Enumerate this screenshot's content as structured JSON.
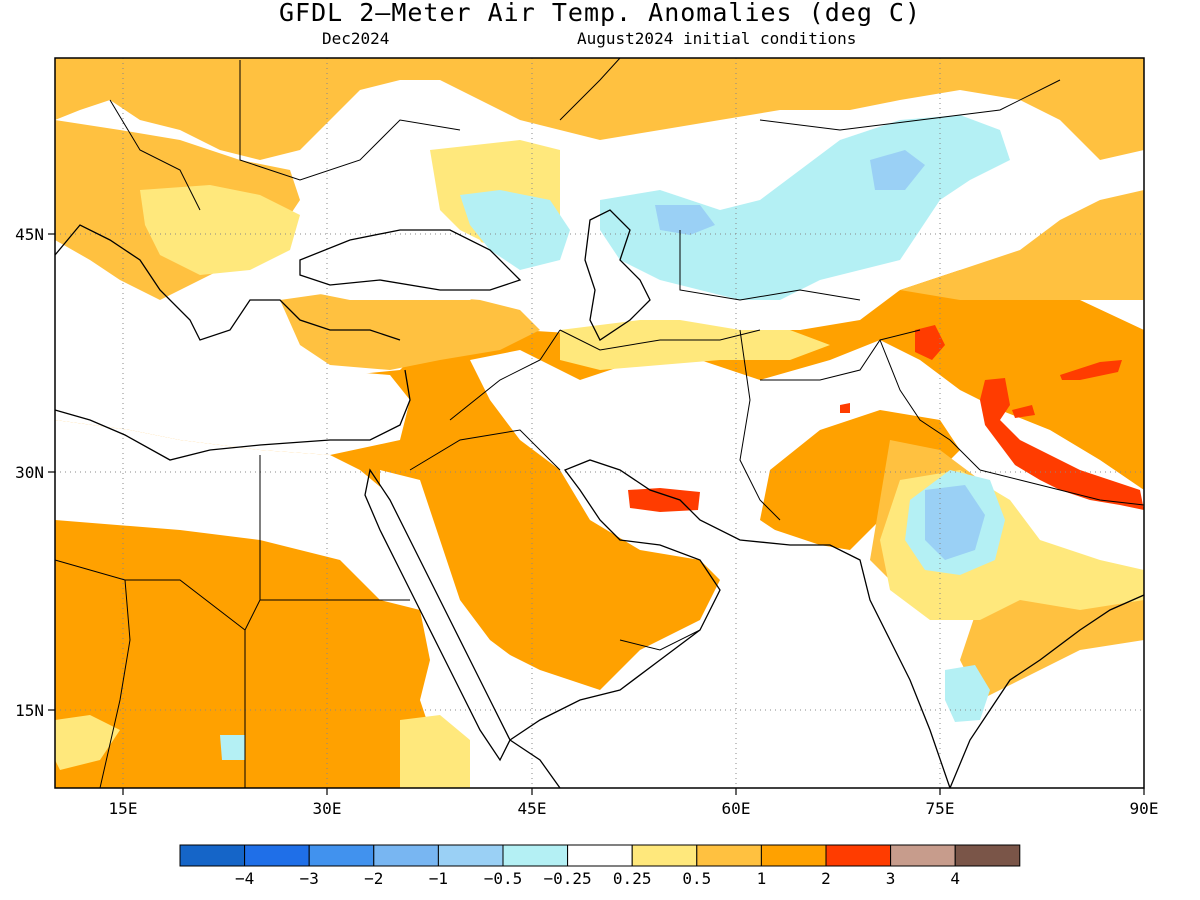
{
  "title": "GFDL 2—Meter Air Temp. Anomalies (deg C)",
  "subtitle_left": "Dec2024",
  "subtitle_right": "August2024 initial conditions",
  "map": {
    "lon_range": [
      10,
      90
    ],
    "lat_range": [
      10,
      57
    ],
    "lon_ticks": [
      "15E",
      "30E",
      "45E",
      "60E",
      "75E",
      "90E"
    ],
    "lat_ticks": [
      "15N",
      "30N",
      "45N"
    ]
  },
  "colorbar": {
    "colors": [
      "#1565c8",
      "#1f6fe8",
      "#4192ee",
      "#78b6f2",
      "#9ad0f5",
      "#b4f0f4",
      "#ffffff",
      "#ffe87c",
      "#ffc140",
      "#ffa100",
      "#ff3c00",
      "#c79c8c",
      "#7a5548"
    ],
    "labels": [
      "−4",
      "−3",
      "−2",
      "−1",
      "−0.5",
      "−0.25",
      "0.25",
      "0.5",
      "1",
      "2",
      "3",
      "4"
    ]
  }
}
